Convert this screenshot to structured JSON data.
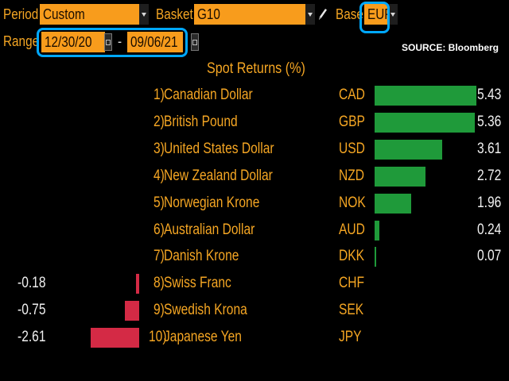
{
  "controls": {
    "period_label": "Period",
    "period_value": "Custom",
    "basket_label": "Basket",
    "basket_value": "G10",
    "base_label": "Base",
    "base_value": "EUR",
    "range_label": "Range",
    "range_start": "12/30/20",
    "range_separator": "-",
    "range_end": "09/06/21",
    "edit_icon": "pencil-icon",
    "highlight_color": "#00a8ff"
  },
  "source": "SOURCE: Bloomberg",
  "chart_data": {
    "type": "bar",
    "title": "Spot Returns (%)",
    "rows": [
      {
        "rank": "1)",
        "name": "Canadian Dollar",
        "code": "CAD",
        "value": 5.43,
        "label": "5.43"
      },
      {
        "rank": "2)",
        "name": "British Pound",
        "code": "GBP",
        "value": 5.36,
        "label": "5.36"
      },
      {
        "rank": "3)",
        "name": "United States Dollar",
        "code": "USD",
        "value": 3.61,
        "label": "3.61"
      },
      {
        "rank": "4)",
        "name": "New Zealand Dollar",
        "code": "NZD",
        "value": 2.72,
        "label": "2.72"
      },
      {
        "rank": "5)",
        "name": "Norwegian Krone",
        "code": "NOK",
        "value": 1.96,
        "label": "1.96"
      },
      {
        "rank": "6)",
        "name": "Australian Dollar",
        "code": "AUD",
        "value": 0.24,
        "label": "0.24"
      },
      {
        "rank": "7)",
        "name": "Danish Krone",
        "code": "DKK",
        "value": 0.07,
        "label": "0.07"
      },
      {
        "rank": "8)",
        "name": "Swiss Franc",
        "code": "CHF",
        "value": -0.18,
        "label": "-0.18"
      },
      {
        "rank": "9)",
        "name": "Swedish Krona",
        "code": "SEK",
        "value": -0.75,
        "label": "-0.75"
      },
      {
        "rank": "10)",
        "name": "Japanese Yen",
        "code": "JPY",
        "value": -2.61,
        "label": "-2.61"
      }
    ],
    "colors": {
      "positive": "#1f9a3a",
      "negative": "#d42a45"
    }
  }
}
